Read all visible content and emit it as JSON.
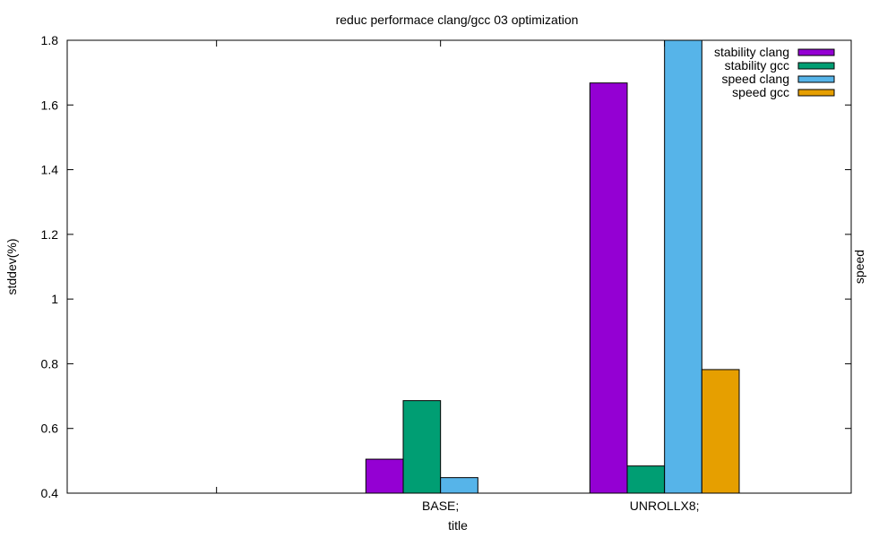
{
  "chart_data": {
    "type": "bar",
    "title": "reduc performace clang/gcc 03 optimization",
    "xlabel": "title",
    "ylabel": "stddev(%)",
    "y2label": "speed",
    "categories": [
      "",
      "BASE;",
      "UNROLLX8;"
    ],
    "ylim": [
      0.4,
      1.8
    ],
    "yticks": [
      "0.4",
      "0.6",
      "0.8",
      "1",
      "1.2",
      "1.4",
      "1.6",
      "1.8"
    ],
    "grid": false,
    "legend_position": "top-right",
    "series": [
      {
        "name": "stability clang",
        "color": "#9400d3",
        "values": [
          null,
          0.505,
          1.668
        ]
      },
      {
        "name": "stability gcc",
        "color": "#009e73",
        "values": [
          null,
          0.686,
          0.484
        ]
      },
      {
        "name": "speed clang",
        "color": "#56b4e9",
        "values": [
          null,
          0.448,
          1.8
        ]
      },
      {
        "name": "speed gcc",
        "color": "#e69f00",
        "values": [
          null,
          0.4,
          0.782
        ]
      }
    ]
  }
}
